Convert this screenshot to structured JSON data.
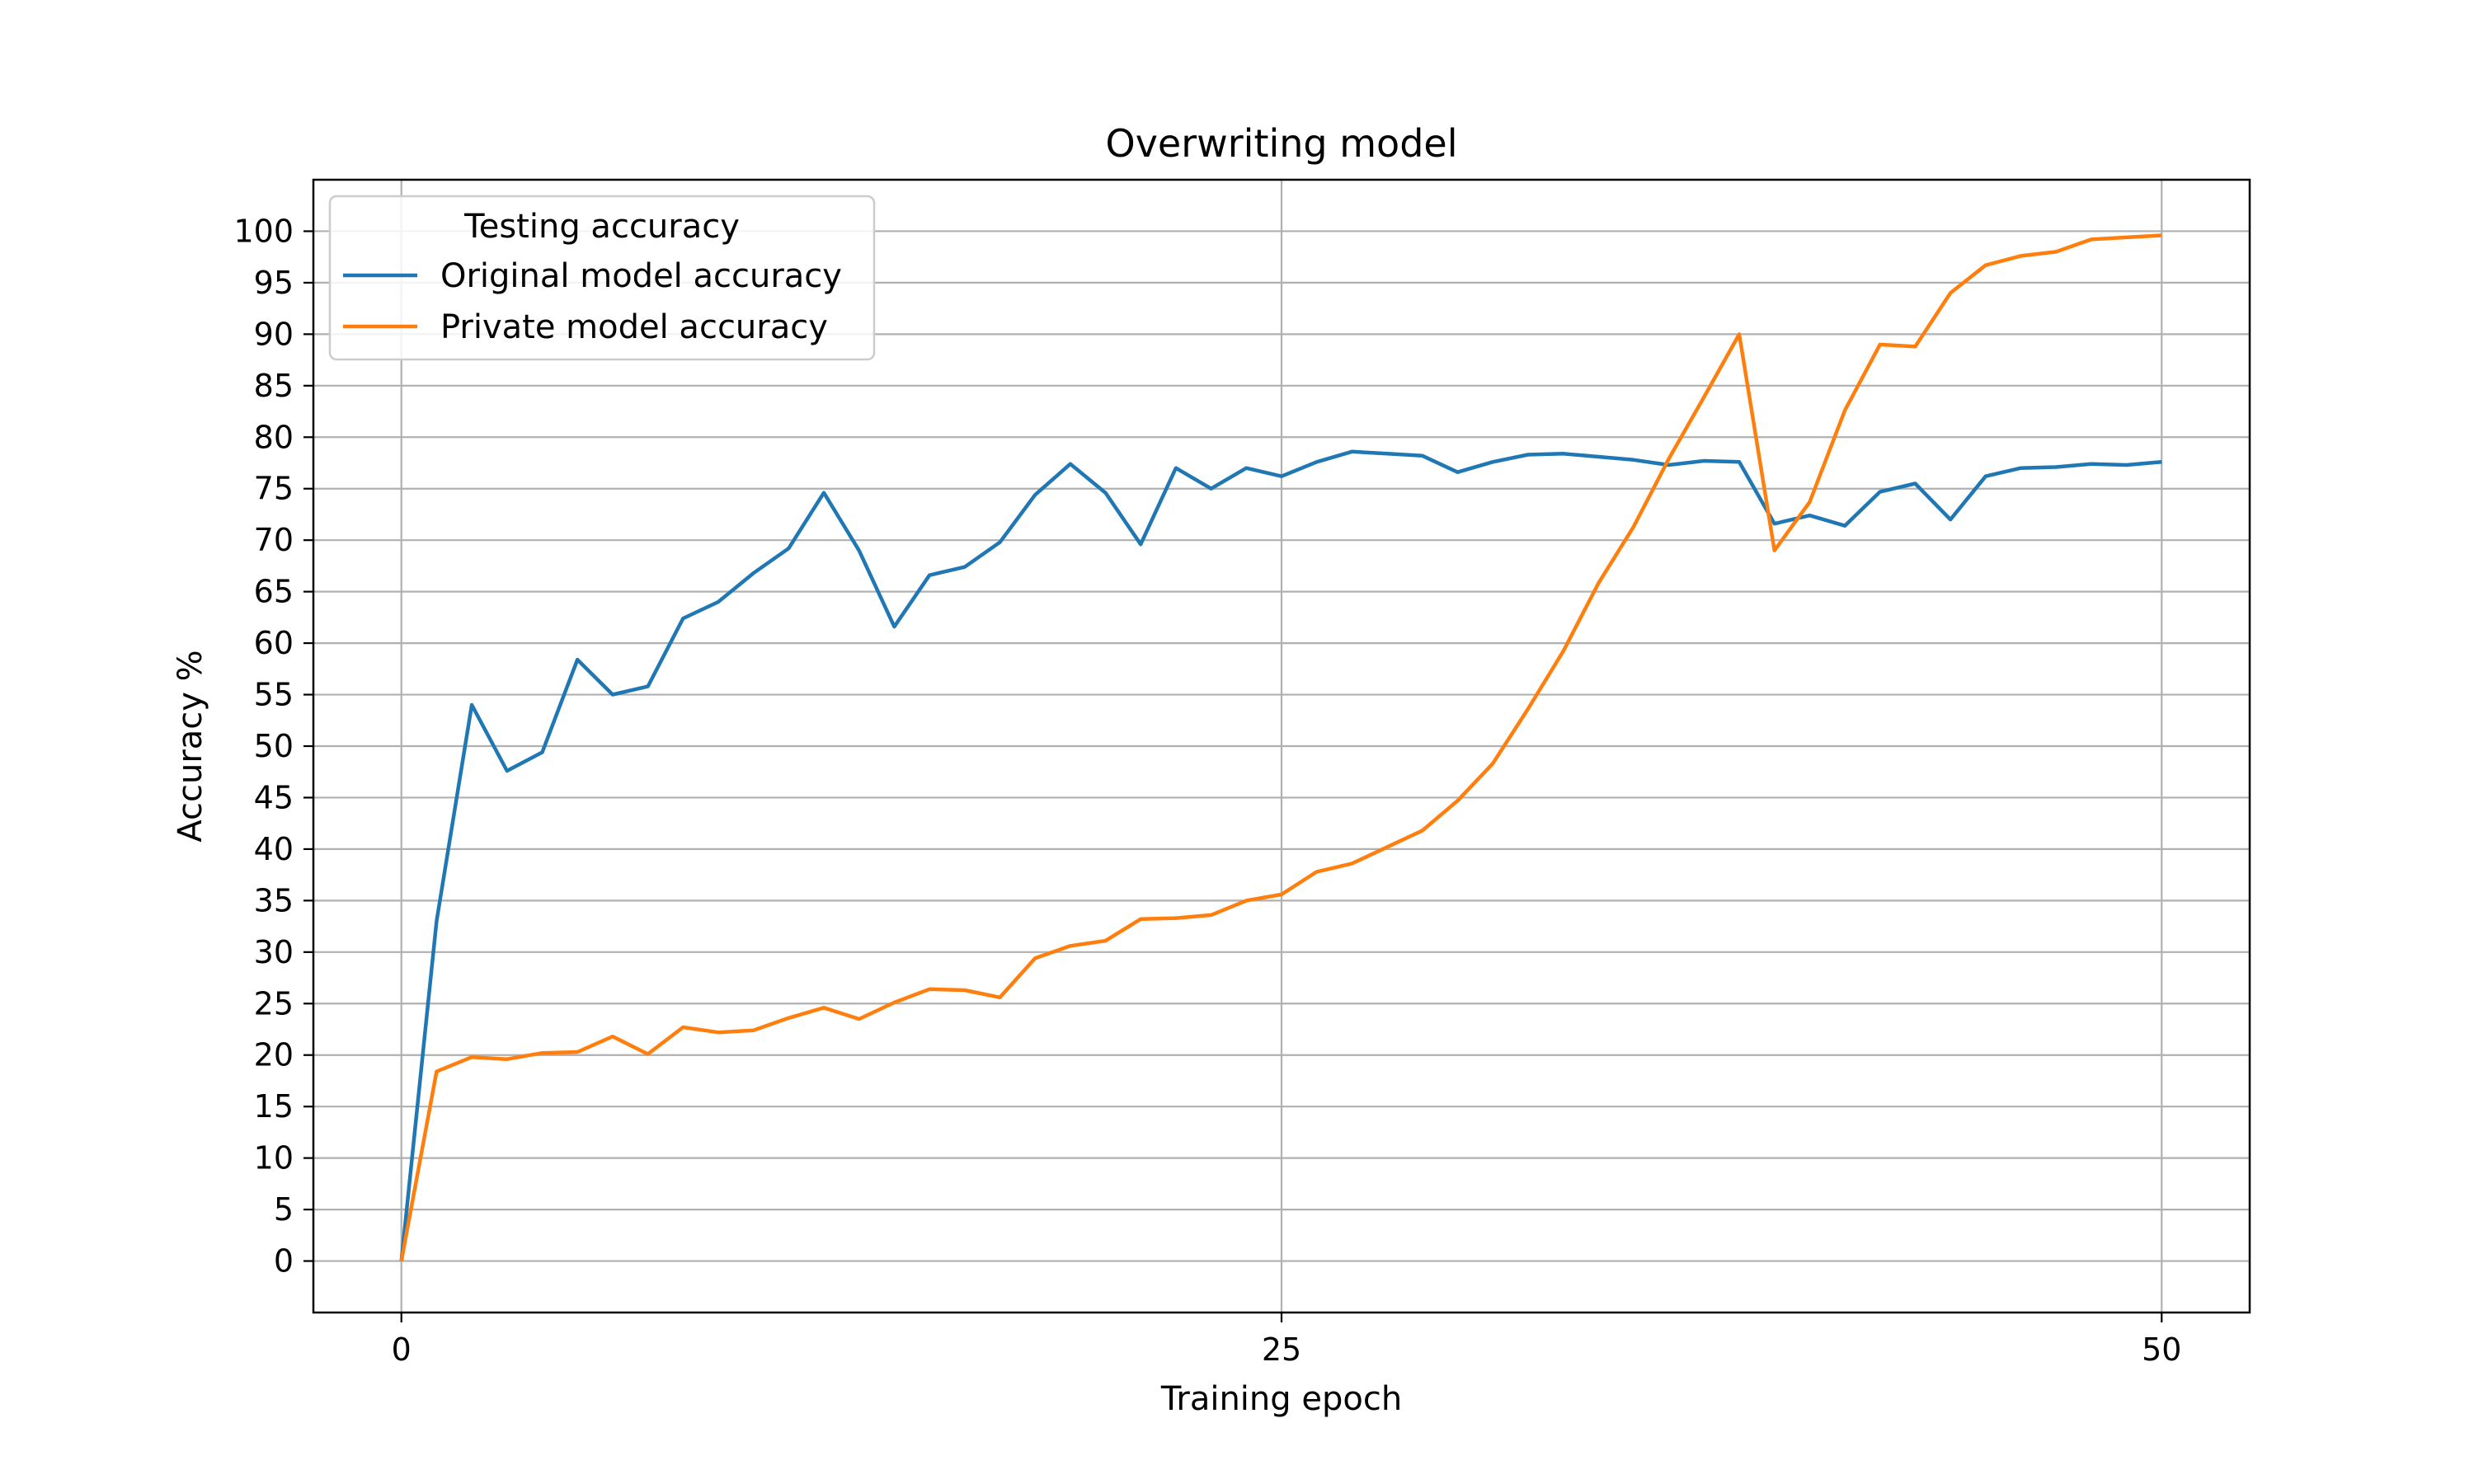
{
  "chart_data": {
    "type": "line",
    "title": "Overwriting model",
    "xlabel": "Training epoch",
    "ylabel": "Accuracy %",
    "xlim": [
      -2.5,
      52.5
    ],
    "ylim": [
      -5,
      105
    ],
    "xticks": [
      0,
      25,
      50
    ],
    "yticks": [
      0,
      5,
      10,
      15,
      20,
      25,
      30,
      35,
      40,
      45,
      50,
      55,
      60,
      65,
      70,
      75,
      80,
      85,
      90,
      95,
      100
    ],
    "grid": true,
    "legend": {
      "title": "Testing accuracy",
      "placement": "top-left"
    },
    "x": [
      0,
      1,
      2,
      3,
      4,
      5,
      6,
      7,
      8,
      9,
      10,
      11,
      12,
      13,
      14,
      15,
      16,
      17,
      18,
      19,
      20,
      21,
      22,
      23,
      24,
      25,
      26,
      27,
      28,
      29,
      30,
      31,
      32,
      33,
      34,
      35,
      36,
      37,
      38,
      39,
      40,
      41,
      42,
      43,
      44,
      45,
      46,
      47,
      48,
      49,
      50
    ],
    "series": [
      {
        "name": "Original model accuracy",
        "color": "#1f77b4",
        "values": [
          0,
          33,
          54,
          47.6,
          49.4,
          58.4,
          55,
          55.8,
          62.4,
          64,
          66.8,
          69.2,
          74.6,
          69,
          61.6,
          66.6,
          67.4,
          69.8,
          74.4,
          77.4,
          74.6,
          69.6,
          77,
          75,
          77,
          76.2,
          77.6,
          78.6,
          78.4,
          78.2,
          76.6,
          77.6,
          78.3,
          78.4,
          78.1,
          77.8,
          77.3,
          77.7,
          77.6,
          71.6,
          72.4,
          71.4,
          74.7,
          75.5,
          72,
          76.2,
          77,
          77.1,
          77.4,
          77.3,
          77.6
        ]
      },
      {
        "name": "Private model accuracy",
        "color": "#ff7f0e",
        "values": [
          0,
          18.4,
          19.8,
          19.6,
          20.2,
          20.3,
          21.8,
          20.1,
          22.7,
          22.2,
          22.4,
          23.6,
          24.6,
          23.5,
          25.1,
          26.4,
          26.3,
          25.6,
          29.4,
          30.6,
          31.1,
          33.2,
          33.3,
          33.6,
          35,
          35.6,
          37.8,
          38.6,
          40.2,
          41.8,
          44.7,
          48.3,
          53.6,
          59.2,
          65.8,
          71.3,
          77.9,
          83.9,
          90,
          69,
          73.7,
          82.6,
          89,
          88.8,
          94,
          96.7,
          97.6,
          98,
          99.2,
          99.4,
          99.6
        ]
      }
    ]
  }
}
